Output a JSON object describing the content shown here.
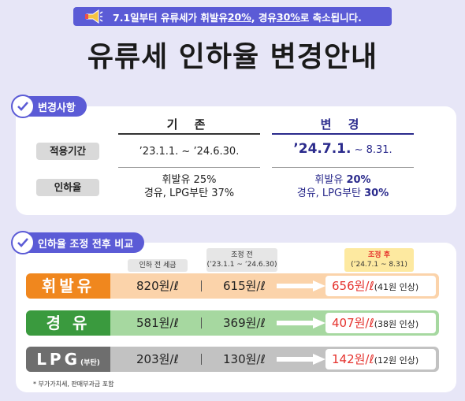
{
  "banner": {
    "text_pre": "7.1일부터 유류세가 휘발유 ",
    "pct1": "20%",
    "text_mid": ", 경유 ",
    "pct2": "30%",
    "text_post": "로 축소됩니다.",
    "icon": "megaphone-icon"
  },
  "title": "유류세 인하율 변경안내",
  "section1": {
    "tag": "변경사항",
    "col_before": "기 존",
    "col_after": "변 경",
    "rows": [
      {
        "label": "적용기간",
        "before": "’23.1.1. ~ ’24.6.30.",
        "after_bold": "’24.7.1.",
        "after_rest": " ~ 8.31."
      },
      {
        "label": "인하율",
        "before_line1": "휘발유 25%",
        "before_line2": "경유, LPG부탄 37%",
        "after_line1_pre": "휘발유 ",
        "after_line1_pct": "20%",
        "after_line2_pre": "경유, LPG부탄 ",
        "after_line2_pct": "30%"
      }
    ]
  },
  "section2": {
    "tag": "인하율 조정 전후 비교",
    "head_pre": "인하 전 세금",
    "head_before_title": "조정 전",
    "head_before_range": "(’23.1.1 ~ ’24.6.30)",
    "head_after_title": "조정 후",
    "head_after_range": "(’24.7.1 ~ 8.31)",
    "rows": [
      {
        "label": "휘발유",
        "label_sub": "",
        "pre": "820원/ℓ",
        "before": "615원/ℓ",
        "after": "656원/ℓ",
        "note": "(41원 인상)",
        "color": "#f0871e",
        "bg": "#fbd3aa"
      },
      {
        "label": "경 유",
        "label_sub": "",
        "pre": "581원/ℓ",
        "before": "369원/ℓ",
        "after": "407원/ℓ",
        "note": "(38원 인상)",
        "color": "#3a9a3e",
        "bg": "#a6d8a0"
      },
      {
        "label": "LPG",
        "label_sub": "(부탄)",
        "pre": "203원/ℓ",
        "before": "130원/ℓ",
        "after": "142원/ℓ",
        "note": "(12원 인상)",
        "color": "#6e6e6e",
        "bg": "#c2c2c2"
      }
    ],
    "footnote": "* 부가가치세, 판매부과금 포함"
  }
}
